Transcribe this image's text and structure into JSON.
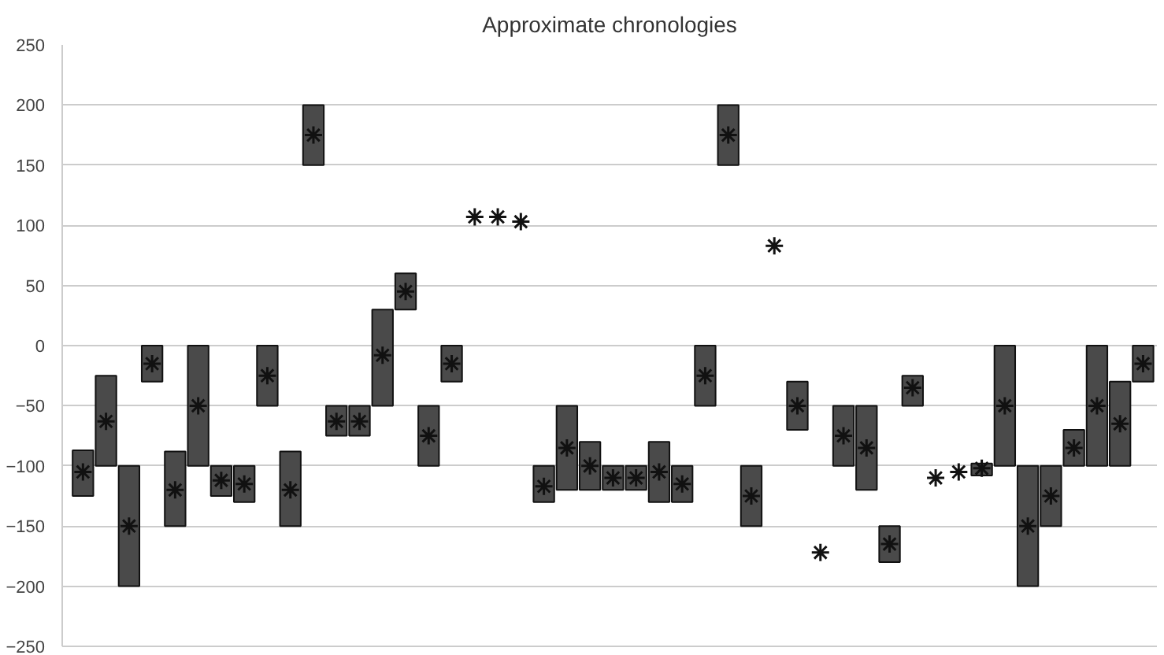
{
  "chart_data": {
    "type": "bar",
    "title": "Approximate chronologies",
    "categories": [
      null,
      null,
      null,
      null,
      null,
      null,
      null,
      null,
      null,
      null,
      null,
      null,
      null,
      null,
      null,
      null,
      null,
      null,
      null,
      null,
      null,
      null,
      null,
      null,
      null,
      null,
      null,
      null,
      null,
      null,
      null,
      null,
      null,
      null,
      null,
      null,
      null,
      null,
      null,
      null,
      null,
      null,
      null,
      null,
      null,
      null,
      null
    ],
    "series": [
      {
        "color": "#4a4a4a",
        "base": [
          -125,
          -100,
          -200,
          -30,
          -150,
          -100,
          -125,
          -130,
          -50,
          -150,
          150,
          -75,
          -75,
          -50,
          30,
          -100,
          -30,
          null,
          null,
          null,
          -130,
          -120,
          -120,
          -120,
          -120,
          -130,
          -130,
          -50,
          150,
          -150,
          null,
          -70,
          null,
          -100,
          -120,
          -180,
          -50,
          null,
          null,
          -108,
          -100,
          -200,
          -150,
          -100,
          -100,
          -100,
          -30
        ],
        "values": [
          38,
          75,
          100,
          30,
          62,
          100,
          25,
          30,
          50,
          62,
          50,
          25,
          25,
          80,
          30,
          50,
          30,
          null,
          null,
          null,
          30,
          70,
          40,
          20,
          20,
          50,
          30,
          50,
          50,
          50,
          null,
          40,
          null,
          50,
          70,
          30,
          25,
          null,
          null,
          10,
          100,
          100,
          50,
          30,
          100,
          70,
          30
        ]
      },
      {
        "type": "scatter",
        "color": "#111111",
        "marker": "cross",
        "values": [
          -105,
          -63,
          -150,
          -15,
          -120,
          -50,
          -112,
          -115,
          -25,
          -120,
          175,
          -63,
          -63,
          -8,
          45,
          -75,
          -15,
          107,
          107,
          103,
          -117,
          -85,
          -100,
          -110,
          -110,
          -105,
          -115,
          -25,
          175,
          -125,
          83,
          -50,
          -172,
          -75,
          -85,
          -165,
          -35,
          -110,
          -105,
          -102,
          -50,
          -150,
          -125,
          -85,
          -50,
          -65,
          -15
        ]
      }
    ],
    "ylim": [
      -250,
      250
    ],
    "yticks": [
      -250,
      -200,
      -150,
      -100,
      -50,
      0,
      50,
      100,
      150,
      200,
      250
    ],
    "grid": "y",
    "tick_labels": "y"
  }
}
